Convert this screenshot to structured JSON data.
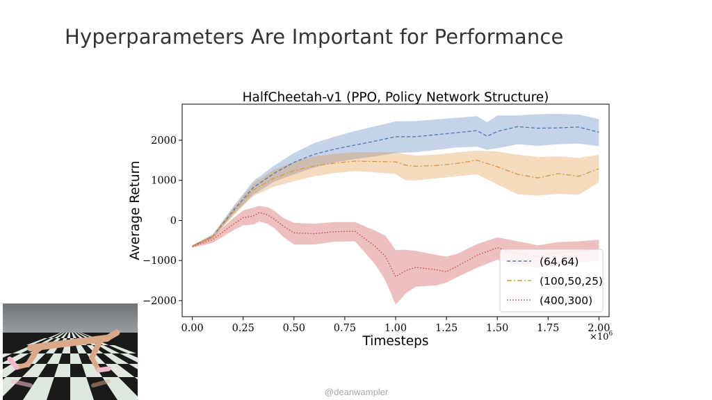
{
  "slide": {
    "title": "Hyperparameters Are Important for Performance",
    "watermark": "@deanwampler"
  },
  "colors": {
    "series_64_64": "#4c78b8",
    "series_100_50_25": "#e0923a",
    "series_400_300": "#c83c3c",
    "title_text": "#333333"
  },
  "chart_data": {
    "type": "line",
    "title": "HalfCheetah-v1 (PPO, Policy Network Structure)",
    "xlabel": "Timesteps",
    "ylabel": "Average Return",
    "x_multiplier_label": "×10",
    "x_multiplier_exp": "6",
    "xlim": [
      -0.05,
      2.05
    ],
    "ylim": [
      -2400,
      2900
    ],
    "xticks": [
      0.0,
      0.25,
      0.5,
      0.75,
      1.0,
      1.25,
      1.5,
      1.75,
      2.0
    ],
    "xtick_labels": [
      "0.00",
      "0.25",
      "0.50",
      "0.75",
      "1.00",
      "1.25",
      "1.50",
      "1.75",
      "2.00"
    ],
    "yticks": [
      -2000,
      -1000,
      0,
      1000,
      2000
    ],
    "ytick_labels": [
      "−2000",
      "−1000",
      "0",
      "1000",
      "2000"
    ],
    "grid": false,
    "legend_position": "bottom-right",
    "series": [
      {
        "name": "(64,64)",
        "style": "dashed",
        "x": [
          0.0,
          0.1,
          0.2,
          0.3,
          0.4,
          0.5,
          0.6,
          0.7,
          0.8,
          0.9,
          1.0,
          1.1,
          1.2,
          1.3,
          1.4,
          1.45,
          1.5,
          1.6,
          1.7,
          1.8,
          1.9,
          2.0
        ],
        "y": [
          -640,
          -400,
          240,
          820,
          1170,
          1450,
          1650,
          1780,
          1880,
          1980,
          2090,
          2090,
          2140,
          2190,
          2240,
          2100,
          2220,
          2340,
          2300,
          2310,
          2330,
          2200
        ],
        "lower": [
          -660,
          -440,
          140,
          640,
          960,
          1150,
          1320,
          1450,
          1530,
          1600,
          1680,
          1700,
          1760,
          1820,
          1840,
          1760,
          1800,
          1900,
          1860,
          1900,
          1920,
          1850
        ],
        "upper": [
          -620,
          -350,
          340,
          980,
          1360,
          1680,
          1930,
          2090,
          2230,
          2350,
          2470,
          2480,
          2520,
          2560,
          2600,
          2450,
          2620,
          2620,
          2650,
          2660,
          2640,
          2530
        ]
      },
      {
        "name": "(100,50,25)",
        "style": "dashdot",
        "x": [
          0.0,
          0.1,
          0.2,
          0.3,
          0.4,
          0.5,
          0.6,
          0.7,
          0.8,
          0.9,
          1.0,
          1.05,
          1.1,
          1.2,
          1.3,
          1.4,
          1.5,
          1.6,
          1.7,
          1.8,
          1.9,
          2.0
        ],
        "y": [
          -640,
          -400,
          200,
          760,
          1050,
          1240,
          1360,
          1430,
          1480,
          1470,
          1460,
          1380,
          1350,
          1370,
          1420,
          1500,
          1340,
          1150,
          1060,
          1170,
          1100,
          1290
        ],
        "lower": [
          -660,
          -450,
          110,
          610,
          840,
          980,
          1100,
          1180,
          1230,
          1200,
          1160,
          1000,
          1000,
          1050,
          1100,
          1150,
          900,
          650,
          620,
          660,
          640,
          950
        ],
        "upper": [
          -620,
          -350,
          300,
          920,
          1260,
          1460,
          1600,
          1660,
          1700,
          1700,
          1700,
          1650,
          1620,
          1640,
          1700,
          1740,
          1720,
          1640,
          1580,
          1600,
          1560,
          1640
        ]
      },
      {
        "name": "(400,300)",
        "style": "dotted",
        "x": [
          0.0,
          0.1,
          0.2,
          0.25,
          0.3,
          0.33,
          0.37,
          0.4,
          0.45,
          0.5,
          0.6,
          0.7,
          0.8,
          0.9,
          0.95,
          1.0,
          1.05,
          1.1,
          1.2,
          1.25,
          1.3,
          1.4,
          1.5,
          1.6,
          1.7,
          1.8,
          1.9,
          2.0
        ],
        "y": [
          -650,
          -480,
          -100,
          70,
          110,
          200,
          140,
          40,
          -150,
          -310,
          -330,
          -280,
          -270,
          -650,
          -900,
          -1400,
          -1250,
          -1170,
          -1230,
          -1280,
          -1150,
          -870,
          -680,
          -820,
          -900,
          -800,
          -760,
          -720
        ],
        "lower": [
          -680,
          -560,
          -250,
          -120,
          -100,
          -20,
          -90,
          -180,
          -420,
          -600,
          -600,
          -530,
          -520,
          -1100,
          -1500,
          -2100,
          -1820,
          -1650,
          -1620,
          -1550,
          -1420,
          -1180,
          -980,
          -1100,
          -1180,
          -1100,
          -1050,
          -1000
        ],
        "upper": [
          -620,
          -400,
          50,
          250,
          320,
          360,
          330,
          250,
          50,
          -60,
          -80,
          -40,
          -40,
          -260,
          -380,
          -740,
          -730,
          -760,
          -860,
          -900,
          -840,
          -590,
          -420,
          -520,
          -620,
          -540,
          -520,
          -480
        ]
      }
    ]
  }
}
